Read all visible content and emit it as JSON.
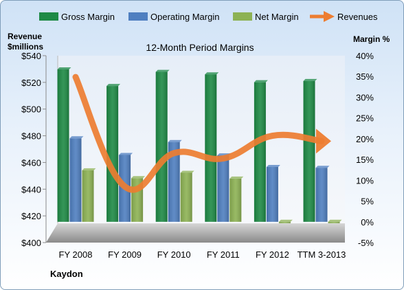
{
  "chart_data": {
    "type": "bar",
    "title": "12-Month Period Margins",
    "left_axis_label_line1": "Revenue",
    "left_axis_label_line2": "$millions",
    "right_axis_label": "Margin %",
    "company": "Kaydon",
    "categories": [
      "FY 2008",
      "FY 2009",
      "FY 2010",
      "FY 2011",
      "FY 2012",
      "TTM 3-2013"
    ],
    "left_axis": {
      "min": 400,
      "max": 540,
      "step": 20,
      "tick_labels": [
        "$400",
        "$420",
        "$440",
        "$460",
        "$480",
        "$500",
        "$520",
        "$540"
      ]
    },
    "right_axis": {
      "min": -5,
      "max": 40,
      "step": 5,
      "tick_labels": [
        "-5%",
        "0%",
        "5%",
        "10%",
        "15%",
        "20%",
        "25%",
        "30%",
        "35%",
        "40%"
      ]
    },
    "series": [
      {
        "name": "Gross Margin",
        "kind": "bar",
        "axis": "right",
        "color": "#1e8a45",
        "values": [
          36.7,
          32.7,
          36.1,
          35.5,
          33.6,
          33.9
        ]
      },
      {
        "name": "Operating Margin",
        "kind": "bar",
        "axis": "right",
        "color": "#4f7fc0",
        "values": [
          20.1,
          16.1,
          19.2,
          16.0,
          13.2,
          13.0
        ]
      },
      {
        "name": "Net Margin",
        "kind": "bar",
        "axis": "right",
        "color": "#8db254",
        "values": [
          12.4,
          10.5,
          11.8,
          10.4,
          -0.3,
          -0.3
        ]
      },
      {
        "name": "Revenues",
        "kind": "line",
        "axis": "left",
        "color": "#ed7d31",
        "values": [
          524,
          442,
          467,
          463,
          480,
          476
        ]
      }
    ],
    "legend_position": "top",
    "grid": false
  }
}
